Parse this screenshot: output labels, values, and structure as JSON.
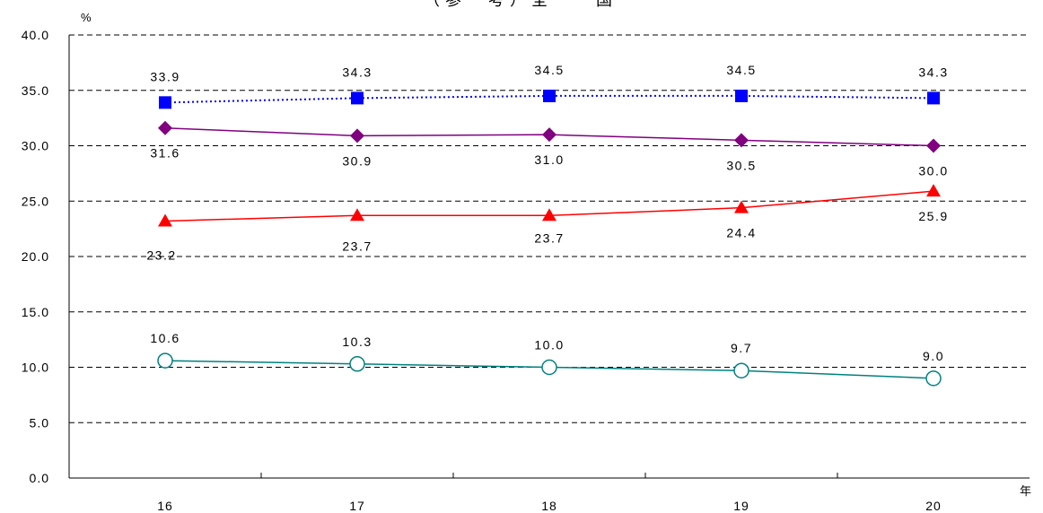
{
  "chart_data": {
    "type": "line",
    "title": "（参　考）全　　国",
    "y_unit_label": "%",
    "x_unit_label": "年",
    "categories": [
      "16",
      "17",
      "18",
      "19",
      "20"
    ],
    "ylim": [
      0,
      40
    ],
    "yticks": [
      "0.0",
      "5.0",
      "10.0",
      "15.0",
      "20.0",
      "25.0",
      "30.0",
      "35.0",
      "40.0"
    ],
    "grid": true,
    "series": [
      {
        "values": [
          33.9,
          34.3,
          34.5,
          34.5,
          34.3
        ],
        "labels": [
          "33.9",
          "34.3",
          "34.5",
          "34.5",
          "34.3"
        ],
        "color": "#0000ff",
        "marker": "square",
        "line": "dotted"
      },
      {
        "values": [
          31.6,
          30.9,
          31.0,
          30.5,
          30.0
        ],
        "labels": [
          "31.6",
          "30.9",
          "31.0",
          "30.5",
          "30.0"
        ],
        "color": "#800080",
        "marker": "diamond",
        "line": "solid"
      },
      {
        "values": [
          23.2,
          23.7,
          23.7,
          24.4,
          25.9
        ],
        "labels": [
          "23.2",
          "23.7",
          "23.7",
          "24.4",
          "25.9"
        ],
        "color": "#ff0000",
        "marker": "triangle",
        "line": "solid"
      },
      {
        "values": [
          10.6,
          10.3,
          10.0,
          9.7,
          9.0
        ],
        "labels": [
          "10.6",
          "10.3",
          "10.0",
          "9.7",
          "9.0"
        ],
        "color": "#008080",
        "marker": "circle-open",
        "line": "solid"
      }
    ]
  }
}
